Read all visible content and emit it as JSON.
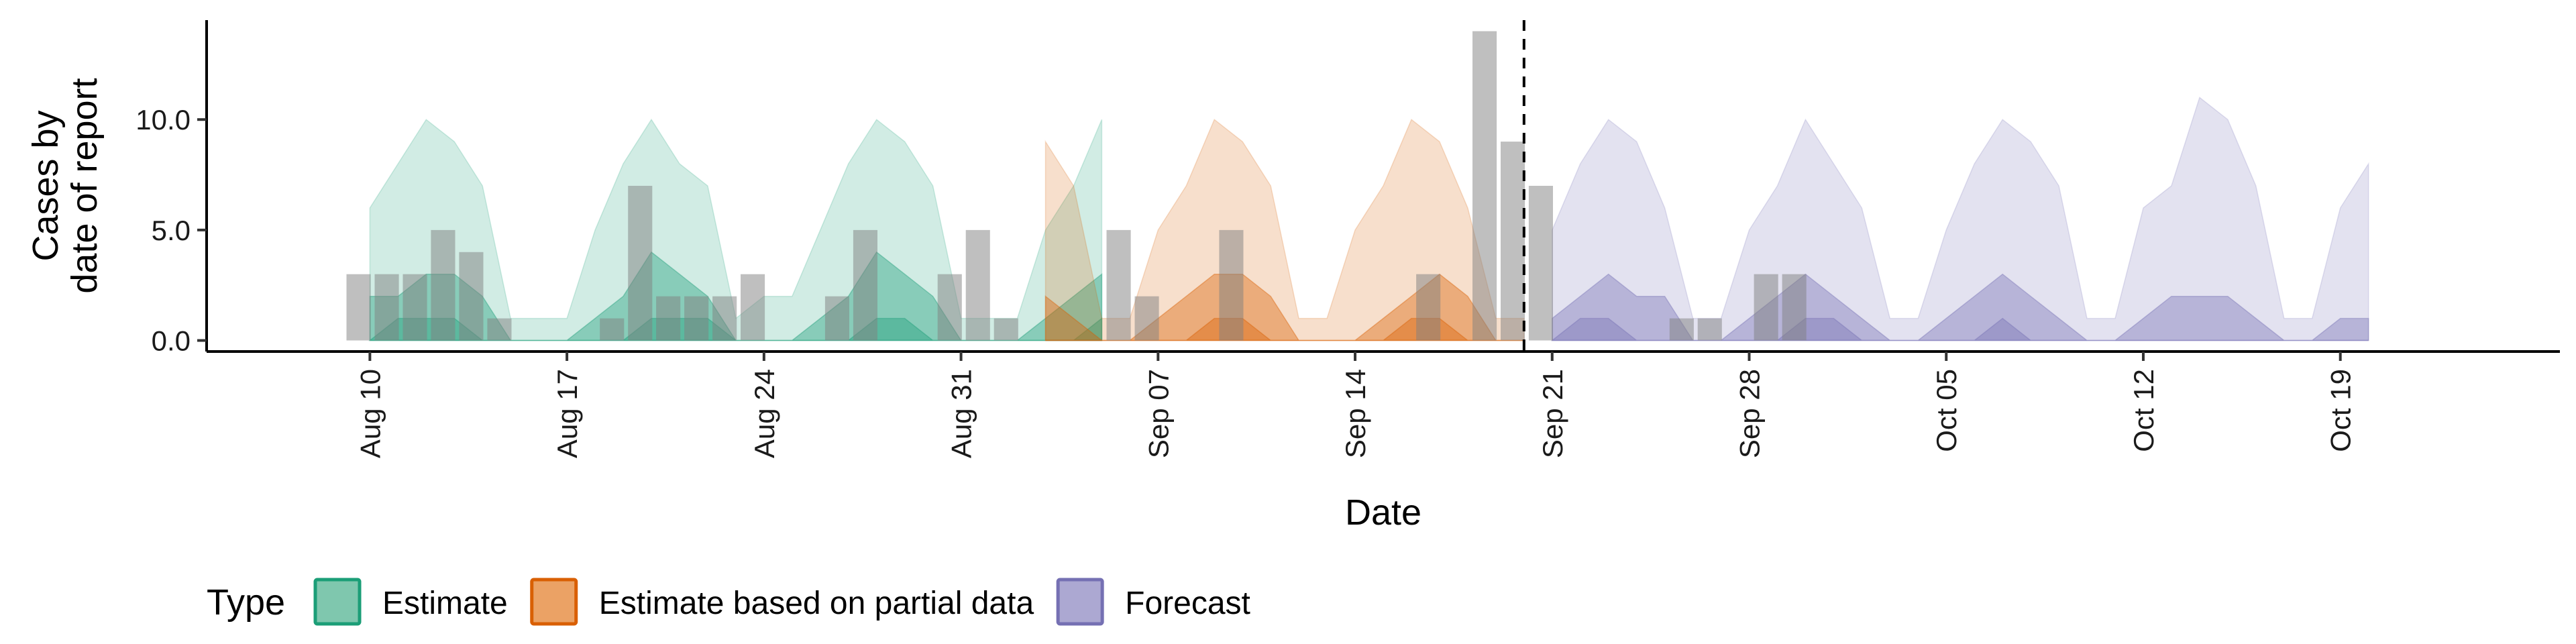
{
  "chart_data": {
    "type": "area",
    "xlabel": "Date",
    "ylabel_lines": [
      "Cases by",
      "date of report"
    ],
    "ylim": [
      -0.5,
      14.5
    ],
    "yticks": [
      0,
      5,
      10
    ],
    "ytick_labels": [
      "0.0",
      "5.0",
      "10.0"
    ],
    "x_start": "Aug 10",
    "x_range_days": [
      -5.8,
      77.8
    ],
    "xticks": [
      {
        "day": 0,
        "label": "Aug 10"
      },
      {
        "day": 7,
        "label": "Aug 17"
      },
      {
        "day": 14,
        "label": "Aug 24"
      },
      {
        "day": 21,
        "label": "Aug 31"
      },
      {
        "day": 28,
        "label": "Sep 07"
      },
      {
        "day": 35,
        "label": "Sep 14"
      },
      {
        "day": 42,
        "label": "Sep 21"
      },
      {
        "day": 49,
        "label": "Sep 28"
      },
      {
        "day": 56,
        "label": "Oct 05"
      },
      {
        "day": 63,
        "label": "Oct 12"
      },
      {
        "day": 70,
        "label": "Oct 19"
      }
    ],
    "forecast_date_day": 41,
    "grid": false,
    "legend": {
      "title": "Type",
      "position": "bottom-left",
      "items": [
        {
          "label": "Estimate",
          "fill": "#7fc7ae",
          "stroke": "#1b9e77"
        },
        {
          "label": "Estimate based on partial data",
          "fill": "#eba265",
          "stroke": "#d95f02"
        },
        {
          "label": "Forecast",
          "fill": "#aca8d2",
          "stroke": "#7570b3"
        }
      ]
    },
    "observed_cases": {
      "start_day": -0.4,
      "values": [
        3,
        3,
        3,
        5,
        4,
        1,
        0,
        0,
        0,
        1,
        7,
        2,
        2,
        2,
        3,
        0,
        0,
        2,
        5,
        0,
        0,
        3,
        5,
        1,
        0,
        0,
        0,
        5,
        2,
        0,
        0,
        5,
        0,
        0,
        0,
        0,
        0,
        0,
        3,
        0,
        14,
        9,
        7,
        0,
        0,
        0,
        0,
        1,
        1,
        0,
        3,
        3,
        0,
        0,
        0
      ]
    },
    "series": [
      {
        "name": "Estimate",
        "start_day": 0,
        "color": "#1b9e77",
        "outer_upper": [
          6,
          8,
          10,
          9,
          7,
          1,
          1,
          1,
          5,
          8,
          10,
          8,
          7,
          1,
          2,
          2,
          5,
          8,
          10,
          9,
          7,
          1,
          1,
          1,
          5,
          7,
          10
        ],
        "outer_lower": [
          0,
          0,
          0,
          0,
          0,
          0,
          0,
          0,
          0,
          0,
          0,
          0,
          0,
          0,
          0,
          0,
          0,
          0,
          0,
          0,
          0,
          0,
          0,
          0,
          0,
          0,
          0
        ],
        "inner_upper": [
          2,
          2,
          3,
          3,
          2,
          0,
          0,
          0,
          1,
          2,
          4,
          3,
          2,
          0,
          0,
          0,
          1,
          2,
          4,
          3,
          2,
          0,
          0,
          0,
          1,
          2,
          3
        ],
        "inner_lower": [
          0,
          0,
          0,
          0,
          0,
          0,
          0,
          0,
          0,
          0,
          0,
          0,
          0,
          0,
          0,
          0,
          0,
          0,
          0,
          0,
          0,
          0,
          0,
          0,
          0,
          0,
          0
        ],
        "core_upper": [
          0,
          1,
          1,
          1,
          0,
          0,
          0,
          0,
          0,
          0,
          1,
          1,
          1,
          0,
          0,
          0,
          0,
          0,
          1,
          1,
          0,
          0,
          0,
          0,
          0,
          0,
          1
        ],
        "core_lower": [
          0,
          0,
          0,
          0,
          0,
          0,
          0,
          0,
          0,
          0,
          0,
          0,
          0,
          0,
          0,
          0,
          0,
          0,
          0,
          0,
          0,
          0,
          0,
          0,
          0,
          0,
          0
        ]
      },
      {
        "name": "Estimate based on partial data",
        "start_day": 24,
        "color": "#d95f02",
        "outer_upper": [
          9,
          7,
          1,
          1,
          5,
          7,
          10,
          9,
          7,
          1,
          1,
          5,
          7,
          10,
          9,
          6,
          1,
          1
        ],
        "outer_lower": [
          0,
          0,
          0,
          0,
          0,
          0,
          0,
          0,
          0,
          0,
          0,
          0,
          0,
          0,
          0,
          0,
          0,
          0
        ],
        "inner_upper": [
          2,
          1,
          0,
          0,
          1,
          2,
          3,
          3,
          2,
          0,
          0,
          0,
          1,
          2,
          3,
          2,
          0,
          0
        ],
        "inner_lower": [
          0,
          0,
          0,
          0,
          0,
          0,
          0,
          0,
          0,
          0,
          0,
          0,
          0,
          0,
          0,
          0,
          0,
          0
        ],
        "core_upper": [
          0,
          0,
          0,
          0,
          0,
          0,
          1,
          1,
          0,
          0,
          0,
          0,
          0,
          1,
          1,
          0,
          0,
          0
        ],
        "core_lower": [
          0,
          0,
          0,
          0,
          0,
          0,
          0,
          0,
          0,
          0,
          0,
          0,
          0,
          0,
          0,
          0,
          0,
          0
        ]
      },
      {
        "name": "Forecast",
        "start_day": 42,
        "color": "#7570b3",
        "outer_upper": [
          5,
          8,
          10,
          9,
          6,
          1,
          1,
          5,
          7,
          10,
          8,
          6,
          1,
          1,
          5,
          8,
          10,
          9,
          7,
          1,
          1,
          6,
          7,
          11,
          10,
          7,
          1,
          1,
          6,
          8
        ],
        "outer_lower": [
          0,
          0,
          0,
          0,
          0,
          0,
          0,
          0,
          0,
          0,
          0,
          0,
          0,
          0,
          0,
          0,
          0,
          0,
          0,
          0,
          0,
          0,
          0,
          0,
          0,
          0,
          0,
          0,
          0,
          0
        ],
        "inner_upper": [
          1,
          2,
          3,
          2,
          2,
          0,
          0,
          1,
          2,
          3,
          2,
          1,
          0,
          0,
          1,
          2,
          3,
          2,
          1,
          0,
          0,
          1,
          2,
          2,
          2,
          1,
          0,
          0,
          1,
          1
        ],
        "inner_lower": [
          0,
          0,
          0,
          0,
          0,
          0,
          0,
          0,
          0,
          0,
          0,
          0,
          0,
          0,
          0,
          0,
          0,
          0,
          0,
          0,
          0,
          0,
          0,
          0,
          0,
          0,
          0,
          0,
          0,
          0
        ],
        "core_upper": [
          0,
          1,
          1,
          0,
          0,
          0,
          0,
          0,
          0,
          1,
          1,
          0,
          0,
          0,
          0,
          0,
          1,
          0,
          0,
          0,
          0,
          0,
          0,
          0,
          0,
          0,
          0,
          0,
          0,
          0
        ],
        "core_lower": [
          0,
          0,
          0,
          0,
          0,
          0,
          0,
          0,
          0,
          0,
          0,
          0,
          0,
          0,
          0,
          0,
          0,
          0,
          0,
          0,
          0,
          0,
          0,
          0,
          0,
          0,
          0,
          0,
          0,
          0
        ]
      }
    ]
  }
}
